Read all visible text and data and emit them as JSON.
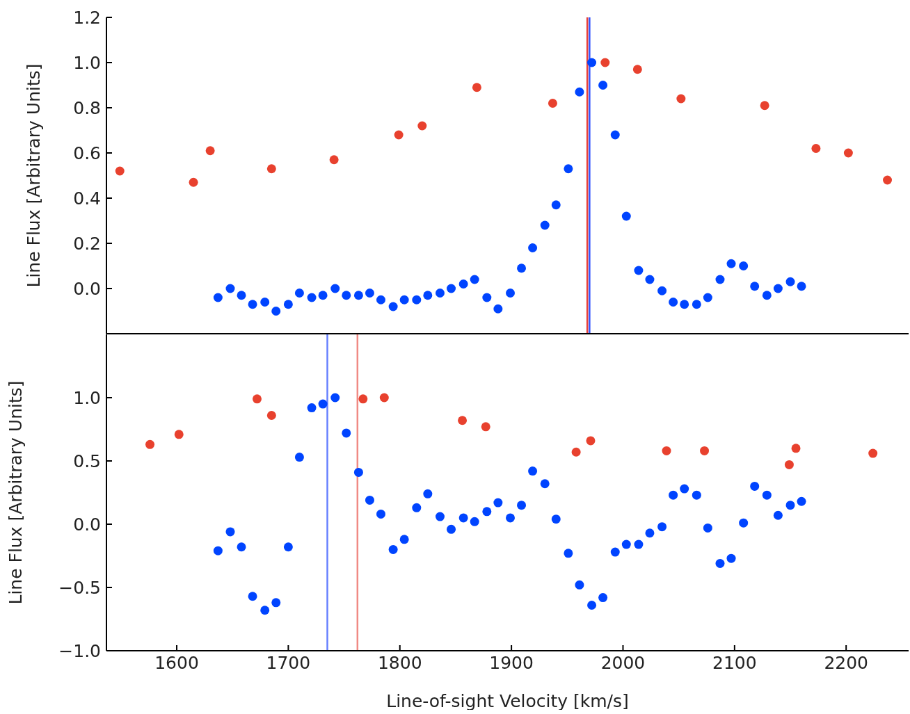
{
  "chart_data": [
    {
      "type": "scatter",
      "ylabel": "Line Flux [Arbitrary Units]",
      "xlim": [
        1537,
        2256
      ],
      "xticks": [
        1600,
        1700,
        1800,
        1900,
        2000,
        2100,
        2200
      ],
      "ylim": [
        -0.2,
        1.2
      ],
      "yticks": [
        {
          "value": 0,
          "label": "0.0"
        },
        {
          "value": 0.2,
          "label": "0.2"
        },
        {
          "value": 0.4,
          "label": "0.4"
        },
        {
          "value": 0.6,
          "label": "0.6"
        },
        {
          "value": 0.8,
          "label": "0.8"
        },
        {
          "value": 1.0,
          "label": "1.0"
        },
        {
          "value": 1.2,
          "label": "1.2"
        }
      ],
      "tick_labels": "y",
      "grid": false,
      "legend": false,
      "marker": "circle",
      "ref_lines": [
        {
          "axis": "x",
          "value": 1968,
          "color": "#e8413a"
        },
        {
          "axis": "x",
          "value": 1970,
          "color": "#3355ff"
        }
      ],
      "series": [
        {
          "color": "#e8412e",
          "x": [
            1549,
            1615,
            1630,
            1685,
            1741,
            1799,
            1820,
            1869,
            1937,
            1984,
            2013,
            2052,
            2127,
            2173,
            2202,
            2237
          ],
          "values": [
            0.52,
            0.47,
            0.61,
            0.53,
            0.57,
            0.68,
            0.72,
            0.89,
            0.82,
            1.0,
            0.97,
            0.84,
            0.81,
            0.62,
            0.6,
            0.48
          ]
        },
        {
          "color": "#0044ff",
          "x": [
            1637,
            1648,
            1658,
            1668,
            1679,
            1689,
            1700,
            1710,
            1721,
            1731,
            1742,
            1752,
            1763,
            1773,
            1783,
            1794,
            1804,
            1815,
            1825,
            1836,
            1846,
            1857,
            1867,
            1878,
            1888,
            1899,
            1909,
            1919,
            1930,
            1940,
            1951,
            1961,
            1972,
            1982,
            1993,
            2003,
            2014,
            2024,
            2035,
            2045,
            2055,
            2066,
            2076,
            2087,
            2097,
            2108,
            2118,
            2129,
            2139,
            2150,
            2160
          ],
          "values": [
            -0.04,
            0.0,
            -0.03,
            -0.07,
            -0.06,
            -0.1,
            -0.07,
            -0.02,
            -0.04,
            -0.03,
            0.0,
            -0.03,
            -0.03,
            -0.02,
            -0.05,
            -0.08,
            -0.05,
            -0.05,
            -0.03,
            -0.02,
            0.0,
            0.02,
            0.04,
            -0.04,
            -0.09,
            -0.02,
            0.09,
            0.18,
            0.28,
            0.37,
            0.53,
            0.87,
            1.0,
            0.9,
            0.68,
            0.32,
            0.08,
            0.04,
            -0.01,
            -0.06,
            -0.07,
            -0.07,
            -0.04,
            0.04,
            0.11,
            0.1,
            0.01,
            -0.03,
            0.0,
            0.03,
            0.01
          ]
        }
      ]
    },
    {
      "type": "scatter",
      "xlabel": "Line-of-sight Velocity [km/s]",
      "ylabel": "Line Flux [Arbitrary Units]",
      "xlim": [
        1537,
        2256
      ],
      "xticks": [
        1600,
        1700,
        1800,
        1900,
        2000,
        2100,
        2200
      ],
      "ylim": [
        -1.0,
        1.5
      ],
      "yticks": [
        {
          "value": -1.0,
          "label": "−1.0"
        },
        {
          "value": -0.5,
          "label": "−0.5"
        },
        {
          "value": 0,
          "label": "0.0"
        },
        {
          "value": 0.5,
          "label": "0.5"
        },
        {
          "value": 1.0,
          "label": "1.0"
        }
      ],
      "grid": false,
      "legend": false,
      "marker": "circle",
      "ref_lines": [
        {
          "axis": "x",
          "value": 1735,
          "color": "#6680ff"
        },
        {
          "axis": "x",
          "value": 1762,
          "color": "#f08a84"
        }
      ],
      "series": [
        {
          "color": "#e8412e",
          "x": [
            1576,
            1602,
            1672,
            1685,
            1767,
            1786,
            1856,
            1877,
            1958,
            1971,
            2039,
            2073,
            2149,
            2155,
            2224
          ],
          "values": [
            0.63,
            0.71,
            0.99,
            0.86,
            0.99,
            1.0,
            0.82,
            0.77,
            0.57,
            0.66,
            0.58,
            0.58,
            0.47,
            0.6,
            0.56
          ]
        },
        {
          "color": "#0044ff",
          "x": [
            1637,
            1648,
            1658,
            1668,
            1679,
            1689,
            1700,
            1710,
            1721,
            1731,
            1742,
            1752,
            1763,
            1773,
            1783,
            1794,
            1804,
            1815,
            1825,
            1836,
            1846,
            1857,
            1867,
            1878,
            1888,
            1899,
            1909,
            1919,
            1930,
            1940,
            1951,
            1961,
            1972,
            1982,
            1993,
            2003,
            2014,
            2024,
            2035,
            2045,
            2055,
            2066,
            2076,
            2087,
            2097,
            2108,
            2118,
            2129,
            2139,
            2150,
            2160
          ],
          "values": [
            -0.21,
            -0.06,
            -0.18,
            -0.57,
            -0.68,
            -0.62,
            -0.18,
            0.53,
            0.92,
            0.95,
            1.0,
            0.72,
            0.41,
            0.19,
            0.08,
            -0.2,
            -0.12,
            0.13,
            0.24,
            0.06,
            -0.04,
            0.05,
            0.02,
            0.1,
            0.17,
            0.05,
            0.15,
            0.42,
            0.32,
            0.04,
            -0.23,
            -0.48,
            -0.64,
            -0.58,
            -0.22,
            -0.16,
            -0.16,
            -0.07,
            -0.02,
            0.23,
            0.28,
            0.23,
            -0.03,
            -0.31,
            -0.27,
            0.01,
            0.3,
            0.23,
            0.07,
            0.15,
            0.18
          ]
        }
      ]
    }
  ]
}
